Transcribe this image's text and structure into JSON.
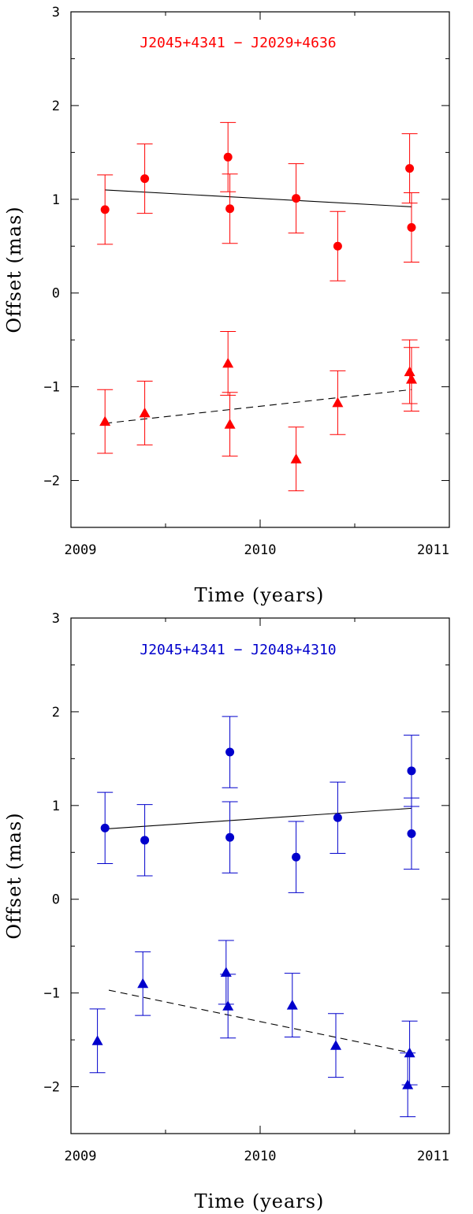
{
  "chart_data": [
    {
      "type": "scatter",
      "title": "J2045+4341 − J2029+4636",
      "xlabel": "Time (years)",
      "ylabel": "Offset (mas)",
      "xlim": [
        2009.0,
        2011.0
      ],
      "ylim": [
        -2.5,
        3.0
      ],
      "xticks": [
        2009,
        2010,
        2011
      ],
      "yticks": [
        -2,
        -1,
        0,
        1,
        2,
        3
      ],
      "color": "#ff0000",
      "series": [
        {
          "name": "circles",
          "marker": "circle",
          "x": [
            2009.18,
            2009.39,
            2009.83,
            2009.84,
            2010.19,
            2010.41,
            2010.79,
            2010.8
          ],
          "y": [
            0.89,
            1.22,
            1.45,
            0.9,
            1.01,
            0.5,
            1.33,
            0.7
          ],
          "err": [
            0.37,
            0.37,
            0.37,
            0.37,
            0.37,
            0.37,
            0.37,
            0.37
          ],
          "fit": {
            "style": "solid",
            "x": [
              2009.18,
              2010.8
            ],
            "y": [
              1.1,
              0.92
            ]
          }
        },
        {
          "name": "triangles",
          "marker": "triangle",
          "x": [
            2009.18,
            2009.39,
            2009.83,
            2009.84,
            2010.19,
            2010.41,
            2010.79,
            2010.8
          ],
          "y": [
            -1.37,
            -1.28,
            -0.75,
            -1.4,
            -1.77,
            -1.17,
            -0.84,
            -0.92
          ],
          "err": [
            0.34,
            0.34,
            0.34,
            0.34,
            0.34,
            0.34,
            0.34,
            0.34
          ],
          "fit": {
            "style": "dashed",
            "x": [
              2009.18,
              2010.8
            ],
            "y": [
              -1.39,
              -1.03
            ]
          }
        }
      ]
    },
    {
      "type": "scatter",
      "title": "J2045+4341 − J2048+4310",
      "xlabel": "Time (years)",
      "ylabel": "Offset (mas)",
      "xlim": [
        2009.0,
        2011.0
      ],
      "ylim": [
        -2.5,
        3.0
      ],
      "xticks": [
        2009,
        2010,
        2011
      ],
      "yticks": [
        -2,
        -1,
        0,
        1,
        2,
        3
      ],
      "color": "#0000cc",
      "series": [
        {
          "name": "circles",
          "marker": "circle",
          "x": [
            2009.18,
            2009.39,
            2009.84,
            2009.84,
            2010.19,
            2010.41,
            2010.8,
            2010.8
          ],
          "y": [
            0.76,
            0.63,
            1.57,
            0.66,
            0.45,
            0.87,
            1.37,
            0.7
          ],
          "err": [
            0.38,
            0.38,
            0.38,
            0.38,
            0.38,
            0.38,
            0.38,
            0.38
          ],
          "fit": {
            "style": "solid",
            "x": [
              2009.18,
              2010.8
            ],
            "y": [
              0.75,
              0.97
            ]
          }
        },
        {
          "name": "triangles",
          "marker": "triangle",
          "x": [
            2009.14,
            2009.38,
            2009.82,
            2009.83,
            2010.17,
            2010.4,
            2010.79,
            2010.78
          ],
          "y": [
            -1.51,
            -0.9,
            -0.78,
            -1.14,
            -1.13,
            -1.56,
            -1.64,
            -1.98
          ],
          "err": [
            0.34,
            0.34,
            0.34,
            0.34,
            0.34,
            0.34,
            0.34,
            0.34
          ],
          "fit": {
            "style": "dashed",
            "x": [
              2009.2,
              2010.8
            ],
            "y": [
              -0.97,
              -1.64
            ]
          }
        }
      ]
    }
  ]
}
